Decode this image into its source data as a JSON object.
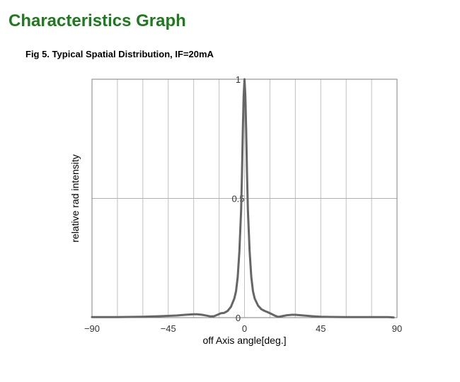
{
  "page": {
    "section_title": "Characteristics Graph",
    "title_color": "#1f7a1f"
  },
  "chart_data": {
    "type": "line",
    "title": "Fig 5. Typical Spatial Distribution, IF=20mA",
    "xlabel": "off Axis angle[deg.]",
    "ylabel": "relative rad intensity",
    "xlim": [
      -90,
      90
    ],
    "ylim": [
      0,
      1
    ],
    "x_ticks": [
      -90,
      -45,
      0,
      45,
      90
    ],
    "x_tick_labels": [
      "−90",
      "−45",
      "0",
      "45",
      "90"
    ],
    "y_ticks": [
      0,
      0.5,
      1
    ],
    "y_tick_labels": [
      "0",
      "0.5",
      "1"
    ],
    "grid": {
      "vertical_every": 15,
      "horizontal_at": [
        0.5,
        1
      ]
    },
    "line_color": "#666666",
    "series": [
      {
        "x": [
          -90,
          -75,
          -60,
          -50,
          -40,
          -35,
          -30,
          -28,
          -25,
          -22,
          -20,
          -18,
          -16,
          -14,
          -12,
          -10,
          -8,
          -6,
          -5,
          -4,
          -3,
          -2,
          -1.5,
          -1,
          -0.5,
          0,
          0.5,
          1,
          1.5,
          2,
          3,
          4,
          5,
          6,
          8,
          10,
          12,
          14,
          16,
          18,
          20,
          22,
          25,
          28,
          30,
          35,
          40,
          45,
          50,
          60,
          75,
          85,
          88
        ],
        "y": [
          0.002,
          0.002,
          0.004,
          0.006,
          0.009,
          0.012,
          0.014,
          0.014,
          0.012,
          0.008,
          0.005,
          0.006,
          0.012,
          0.018,
          0.02,
          0.028,
          0.045,
          0.08,
          0.11,
          0.17,
          0.28,
          0.45,
          0.6,
          0.78,
          0.93,
          1.0,
          0.93,
          0.78,
          0.6,
          0.45,
          0.28,
          0.17,
          0.11,
          0.08,
          0.05,
          0.035,
          0.028,
          0.022,
          0.015,
          0.008,
          0.003,
          0.006,
          0.01,
          0.012,
          0.012,
          0.009,
          0.006,
          0.004,
          0.003,
          0.002,
          0.002,
          0.002,
          0.001
        ]
      }
    ]
  }
}
